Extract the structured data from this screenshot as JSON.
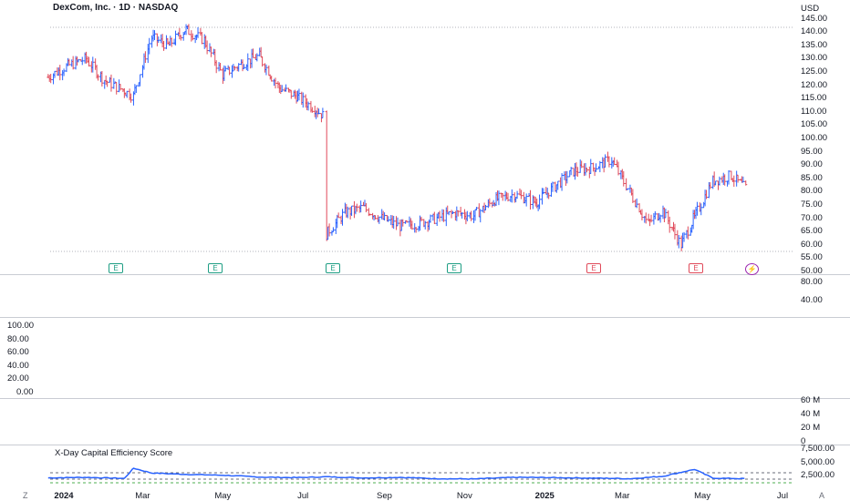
{
  "header": {
    "title": "DexCom, Inc. · 1D · NASDAQ",
    "currency": "USD"
  },
  "price_axis": [
    "145.00",
    "140.00",
    "135.00",
    "130.00",
    "125.00",
    "120.00",
    "115.00",
    "110.00",
    "105.00",
    "100.00",
    "95.00",
    "90.00",
    "85.00",
    "80.00",
    "75.00",
    "70.00",
    "65.00",
    "60.00",
    "55.00",
    "50.00"
  ],
  "pane2_axis": [
    "80.00",
    "40.00"
  ],
  "pane3_axis": [
    "100.00",
    "80.00",
    "60.00",
    "40.00",
    "20.00",
    "0.00"
  ],
  "volume_axis": [
    "60 M",
    "40 M",
    "20 M",
    "0"
  ],
  "indicator": {
    "title": "X-Day Capital Efficiency Score",
    "axis": [
      "7,500.00",
      "5,000.00",
      "2,500.00"
    ]
  },
  "x_axis": [
    {
      "label": "2024",
      "bold": true
    },
    {
      "label": "Mar",
      "bold": false
    },
    {
      "label": "May",
      "bold": false
    },
    {
      "label": "Jul",
      "bold": false
    },
    {
      "label": "Sep",
      "bold": false
    },
    {
      "label": "Nov",
      "bold": false
    },
    {
      "label": "2025",
      "bold": true
    },
    {
      "label": "Mar",
      "bold": false
    },
    {
      "label": "May",
      "bold": false
    },
    {
      "label": "Jul",
      "bold": false
    }
  ],
  "corner": {
    "left": "Z",
    "right": "A"
  },
  "events": [
    {
      "label": "E",
      "kind": "green"
    },
    {
      "label": "E",
      "kind": "green"
    },
    {
      "label": "E",
      "kind": "green"
    },
    {
      "label": "E",
      "kind": "green"
    },
    {
      "label": "E",
      "kind": "red"
    },
    {
      "label": "E",
      "kind": "red"
    },
    {
      "label": "⚡",
      "kind": "purple"
    }
  ],
  "colors": {
    "up": "#2962ff",
    "down": "#e04a5a",
    "indicator": "#2962ff",
    "earn_green": "#1e9e84"
  },
  "chart_data": [
    {
      "type": "line",
      "title": "DexCom, Inc. · 1D · NASDAQ",
      "ylabel": "USD",
      "ylim": [
        50,
        145
      ],
      "note_type": "OHLC bars",
      "x": [
        "2023-12-27",
        "2024-01-10",
        "2024-01-25",
        "2024-02-08",
        "2024-02-23",
        "2024-03-01",
        "2024-03-15",
        "2024-03-28",
        "2024-04-10",
        "2024-04-24",
        "2024-05-08",
        "2024-05-22",
        "2024-06-05",
        "2024-06-20",
        "2024-07-03",
        "2024-07-18",
        "2024-07-25",
        "2024-07-26",
        "2024-08-09",
        "2024-08-23",
        "2024-09-06",
        "2024-09-20",
        "2024-10-04",
        "2024-10-18",
        "2024-11-01",
        "2024-11-15",
        "2024-12-02",
        "2024-12-16",
        "2025-01-02",
        "2025-01-16",
        "2025-01-31",
        "2025-02-14",
        "2025-02-28",
        "2025-03-14",
        "2025-03-28",
        "2025-04-08",
        "2025-04-22",
        "2025-05-02",
        "2025-05-16",
        "2025-05-30",
        "2025-06-11"
      ],
      "series": [
        {
          "values": [
            123,
            127,
            130,
            122,
            118,
            116,
            138,
            135,
            141,
            137,
            124,
            128,
            131,
            119,
            116,
            111,
            108,
            64,
            72,
            74,
            70,
            67,
            68,
            70,
            72,
            71,
            77,
            79,
            76,
            82,
            88,
            89,
            92,
            80,
            68,
            73,
            60,
            70,
            84,
            86,
            81
          ]
        }
      ]
    },
    {
      "type": "line",
      "title": "X-Day Capital Efficiency Score",
      "ylim": [
        0,
        8000
      ],
      "x": [
        "2023-12-27",
        "2024-01-25",
        "2024-02-23",
        "2024-03-01",
        "2024-03-15",
        "2024-04-10",
        "2024-05-08",
        "2024-06-05",
        "2024-07-03",
        "2024-07-26",
        "2024-08-23",
        "2024-09-20",
        "2024-10-18",
        "2024-11-15",
        "2024-12-16",
        "2025-01-16",
        "2025-02-14",
        "2025-03-14",
        "2025-04-08",
        "2025-05-02",
        "2025-05-16",
        "2025-06-11"
      ],
      "series": [
        {
          "values": [
            3200,
            3400,
            3000,
            6800,
            5000,
            4500,
            4200,
            3500,
            3300,
            3600,
            3200,
            3400,
            2900,
            2800,
            3400,
            3300,
            3100,
            2900,
            3800,
            6400,
            3100,
            2900
          ]
        }
      ]
    }
  ]
}
